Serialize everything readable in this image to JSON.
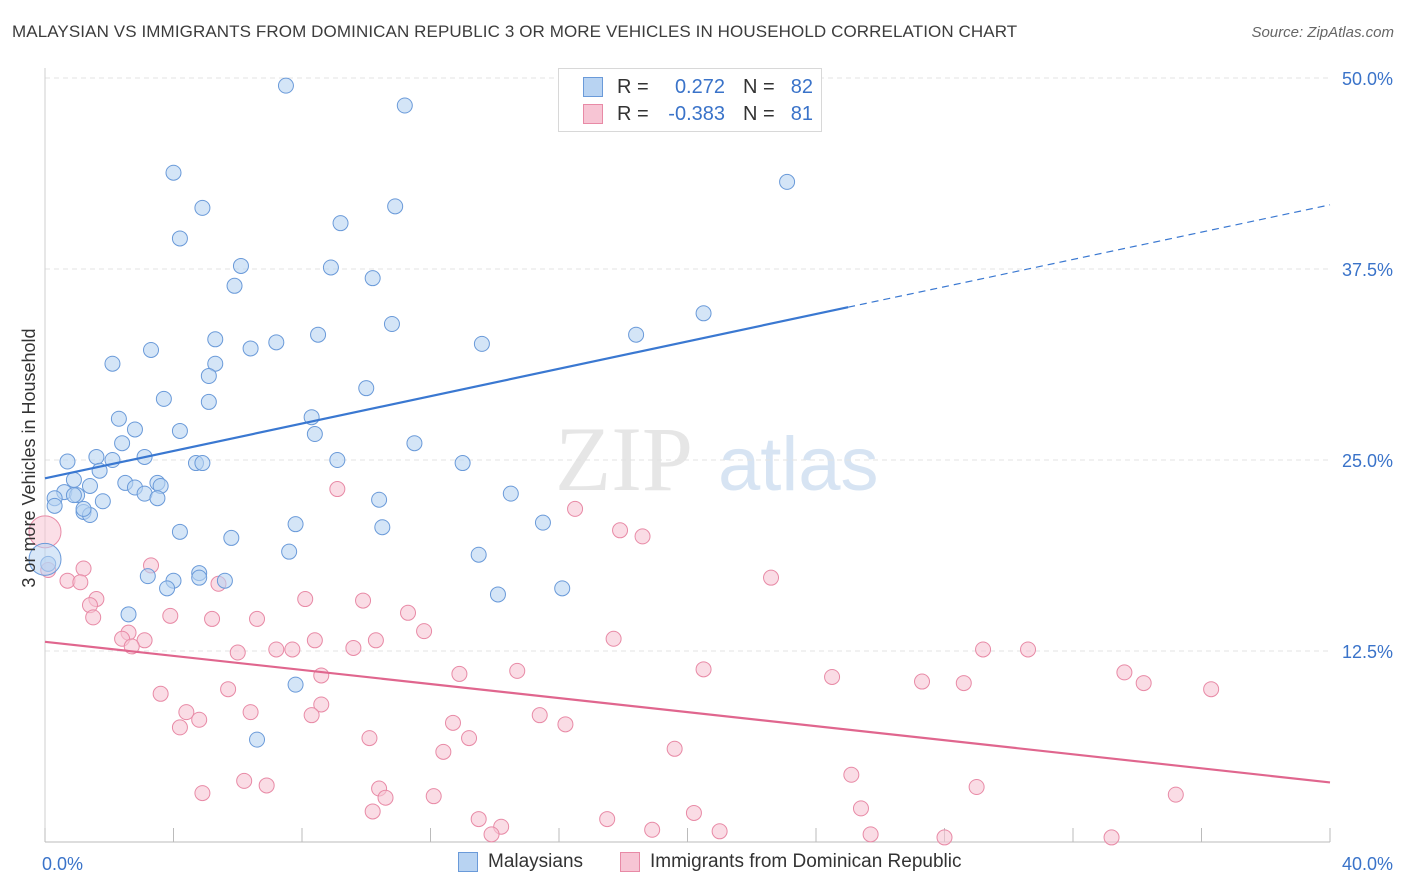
{
  "title": "MALAYSIAN VS IMMIGRANTS FROM DOMINICAN REPUBLIC 3 OR MORE VEHICLES IN HOUSEHOLD CORRELATION CHART",
  "source": "Source: ZipAtlas.com",
  "watermark": {
    "zip": "ZIP",
    "atlas": "atlas"
  },
  "legend": {
    "r_label": "R =",
    "n_label": "N =",
    "series": [
      {
        "r": "0.272",
        "n": "82",
        "fill": "#b8d3f2",
        "stroke": "#6a9ad9"
      },
      {
        "r": "-0.383",
        "n": "81",
        "fill": "#f7c5d4",
        "stroke": "#e88aa6"
      }
    ]
  },
  "chart_data": {
    "type": "scatter",
    "ylabel": "3 or more Vehicles in Household",
    "xlim": [
      0,
      40
    ],
    "ylim": [
      0,
      50
    ],
    "x_tick_labels": [
      "0.0%",
      "40.0%"
    ],
    "y_ticks": [
      12.5,
      25.0,
      37.5,
      50.0
    ],
    "y_tick_labels": [
      "12.5%",
      "25.0%",
      "37.5%",
      "50.0%"
    ],
    "grid": "horizontal dashed",
    "series": [
      {
        "name": "Malaysians",
        "color": "#6a9ad9",
        "fill": "#b8d3f2",
        "trend": {
          "x": [
            0,
            25
          ],
          "y": [
            23.8,
            35.0
          ],
          "dashed_to": [
            40,
            41.7
          ]
        },
        "points": [
          [
            7.5,
            49.5
          ],
          [
            11.2,
            48.2
          ],
          [
            4.0,
            43.8
          ],
          [
            23.1,
            43.2
          ],
          [
            4.9,
            41.5
          ],
          [
            10.9,
            41.6
          ],
          [
            4.2,
            39.5
          ],
          [
            9.2,
            40.5
          ],
          [
            6.1,
            37.7
          ],
          [
            8.9,
            37.6
          ],
          [
            10.2,
            36.9
          ],
          [
            5.9,
            36.4
          ],
          [
            20.5,
            34.6
          ],
          [
            10.8,
            33.9
          ],
          [
            18.4,
            33.2
          ],
          [
            5.3,
            32.9
          ],
          [
            7.2,
            32.7
          ],
          [
            8.5,
            33.2
          ],
          [
            13.6,
            32.6
          ],
          [
            3.3,
            32.2
          ],
          [
            6.4,
            32.3
          ],
          [
            2.1,
            31.3
          ],
          [
            5.3,
            31.3
          ],
          [
            5.1,
            30.5
          ],
          [
            10.0,
            29.7
          ],
          [
            3.7,
            29.0
          ],
          [
            5.1,
            28.8
          ],
          [
            8.3,
            27.8
          ],
          [
            2.3,
            27.7
          ],
          [
            2.8,
            27.0
          ],
          [
            4.2,
            26.9
          ],
          [
            8.4,
            26.7
          ],
          [
            2.4,
            26.1
          ],
          [
            11.5,
            26.1
          ],
          [
            1.6,
            25.2
          ],
          [
            0.7,
            24.9
          ],
          [
            2.1,
            25.0
          ],
          [
            3.1,
            25.2
          ],
          [
            9.1,
            25.0
          ],
          [
            4.7,
            24.8
          ],
          [
            4.9,
            24.8
          ],
          [
            13.0,
            24.8
          ],
          [
            1.7,
            24.3
          ],
          [
            0.9,
            23.7
          ],
          [
            2.5,
            23.5
          ],
          [
            3.5,
            23.5
          ],
          [
            1.4,
            23.3
          ],
          [
            2.8,
            23.2
          ],
          [
            3.6,
            23.3
          ],
          [
            0.6,
            22.9
          ],
          [
            1.0,
            22.7
          ],
          [
            0.3,
            22.5
          ],
          [
            3.1,
            22.8
          ],
          [
            14.5,
            22.8
          ],
          [
            0.9,
            22.7
          ],
          [
            3.5,
            22.5
          ],
          [
            10.4,
            22.4
          ],
          [
            1.8,
            22.3
          ],
          [
            0.3,
            22.0
          ],
          [
            1.2,
            21.6
          ],
          [
            1.4,
            21.4
          ],
          [
            7.8,
            20.8
          ],
          [
            15.5,
            20.9
          ],
          [
            10.5,
            20.6
          ],
          [
            4.2,
            20.3
          ],
          [
            5.8,
            19.9
          ],
          [
            7.6,
            19.0
          ],
          [
            13.5,
            18.8
          ],
          [
            0.1,
            18.2
          ],
          [
            4.8,
            17.6
          ],
          [
            3.2,
            17.4
          ],
          [
            5.6,
            17.1
          ],
          [
            4.8,
            17.3
          ],
          [
            4.0,
            17.1
          ],
          [
            3.8,
            16.6
          ],
          [
            16.1,
            16.6
          ],
          [
            14.1,
            16.2
          ],
          [
            2.6,
            14.9
          ],
          [
            7.8,
            10.3
          ],
          [
            6.6,
            6.7
          ],
          [
            0.0,
            18.5
          ],
          [
            1.2,
            21.8
          ]
        ]
      },
      {
        "name": "Immigrants from Dominican Republic",
        "color": "#e88aa6",
        "fill": "#f7c5d4",
        "trend": {
          "x": [
            0,
            40
          ],
          "y": [
            13.1,
            3.9
          ]
        },
        "points": [
          [
            0.0,
            20.3
          ],
          [
            0.1,
            17.8
          ],
          [
            1.2,
            17.9
          ],
          [
            9.1,
            23.1
          ],
          [
            16.5,
            21.8
          ],
          [
            17.9,
            20.4
          ],
          [
            18.6,
            20.0
          ],
          [
            3.3,
            18.1
          ],
          [
            0.7,
            17.1
          ],
          [
            1.1,
            17.0
          ],
          [
            5.4,
            16.9
          ],
          [
            22.6,
            17.3
          ],
          [
            1.6,
            15.9
          ],
          [
            8.1,
            15.9
          ],
          [
            9.9,
            15.8
          ],
          [
            1.4,
            15.5
          ],
          [
            11.3,
            15.0
          ],
          [
            1.5,
            14.7
          ],
          [
            3.9,
            14.8
          ],
          [
            5.2,
            14.6
          ],
          [
            6.6,
            14.6
          ],
          [
            11.8,
            13.8
          ],
          [
            2.6,
            13.7
          ],
          [
            2.4,
            13.3
          ],
          [
            3.1,
            13.2
          ],
          [
            8.4,
            13.2
          ],
          [
            10.3,
            13.2
          ],
          [
            17.7,
            13.3
          ],
          [
            2.7,
            12.8
          ],
          [
            7.2,
            12.6
          ],
          [
            7.7,
            12.6
          ],
          [
            9.6,
            12.7
          ],
          [
            29.2,
            12.6
          ],
          [
            30.6,
            12.6
          ],
          [
            6.0,
            12.4
          ],
          [
            20.5,
            11.3
          ],
          [
            14.7,
            11.2
          ],
          [
            12.9,
            11.0
          ],
          [
            8.6,
            10.9
          ],
          [
            24.5,
            10.8
          ],
          [
            27.3,
            10.5
          ],
          [
            28.6,
            10.4
          ],
          [
            33.6,
            11.1
          ],
          [
            34.2,
            10.4
          ],
          [
            36.3,
            10.0
          ],
          [
            5.7,
            10.0
          ],
          [
            3.6,
            9.7
          ],
          [
            8.6,
            9.0
          ],
          [
            4.4,
            8.5
          ],
          [
            6.4,
            8.5
          ],
          [
            4.8,
            8.0
          ],
          [
            8.3,
            8.3
          ],
          [
            15.4,
            8.3
          ],
          [
            12.7,
            7.8
          ],
          [
            16.2,
            7.7
          ],
          [
            4.2,
            7.5
          ],
          [
            10.1,
            6.8
          ],
          [
            13.2,
            6.8
          ],
          [
            12.4,
            5.9
          ],
          [
            19.6,
            6.1
          ],
          [
            25.1,
            4.4
          ],
          [
            6.2,
            4.0
          ],
          [
            6.9,
            3.7
          ],
          [
            10.4,
            3.5
          ],
          [
            29.0,
            3.6
          ],
          [
            35.2,
            3.1
          ],
          [
            4.9,
            3.2
          ],
          [
            12.1,
            3.0
          ],
          [
            10.6,
            2.9
          ],
          [
            10.2,
            2.0
          ],
          [
            20.2,
            1.9
          ],
          [
            25.4,
            2.2
          ],
          [
            17.5,
            1.5
          ],
          [
            13.5,
            1.5
          ],
          [
            14.2,
            1.0
          ],
          [
            18.9,
            0.8
          ],
          [
            13.9,
            0.5
          ],
          [
            21.0,
            0.7
          ],
          [
            25.7,
            0.5
          ],
          [
            28.0,
            0.3
          ],
          [
            33.2,
            0.3
          ]
        ]
      }
    ]
  }
}
